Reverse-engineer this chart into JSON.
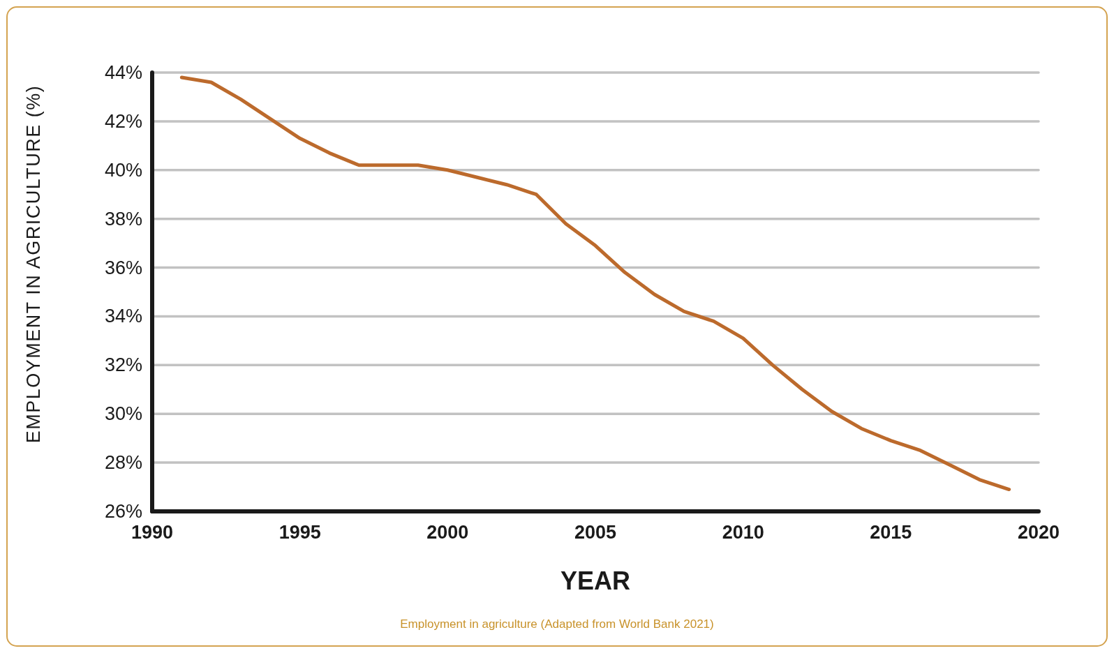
{
  "chart_data": {
    "type": "line",
    "xlabel": "YEAR",
    "ylabel": "EMPLOYMENT IN AGRICULTURE (%)",
    "annotations": [
      "Employment in agriculture (Adapted from World Bank 2021)"
    ],
    "x": [
      1991,
      1992,
      1993,
      1994,
      1995,
      1996,
      1997,
      1998,
      1999,
      2000,
      2001,
      2002,
      2003,
      2004,
      2005,
      2006,
      2007,
      2008,
      2009,
      2010,
      2011,
      2012,
      2013,
      2014,
      2015,
      2016,
      2017,
      2018,
      2019
    ],
    "series": [
      {
        "color": "#bc6a2c",
        "values": [
          43.8,
          43.6,
          42.9,
          42.1,
          41.3,
          40.7,
          40.2,
          40.2,
          40.2,
          40.0,
          39.7,
          39.4,
          39.0,
          37.8,
          36.9,
          35.8,
          34.9,
          34.2,
          33.8,
          33.1,
          32.0,
          31.0,
          30.1,
          29.4,
          28.9,
          28.5,
          27.9,
          27.3,
          26.9
        ]
      }
    ],
    "xlim": [
      1990,
      2020
    ],
    "xticks": [
      1990,
      1995,
      2000,
      2005,
      2010,
      2015,
      2020
    ],
    "ylim": [
      26,
      44
    ],
    "yticks": [
      {
        "value": 26,
        "label": "26%"
      },
      {
        "value": 28,
        "label": "28%"
      },
      {
        "value": 30,
        "label": "30%"
      },
      {
        "value": 32,
        "label": "32%"
      },
      {
        "value": 34,
        "label": "34%"
      },
      {
        "value": 36,
        "label": "36%"
      },
      {
        "value": 38,
        "label": "38%"
      },
      {
        "value": 40,
        "label": "40%"
      },
      {
        "value": 42,
        "label": "42%"
      },
      {
        "value": 44,
        "label": "44%"
      }
    ],
    "grid": "y"
  }
}
